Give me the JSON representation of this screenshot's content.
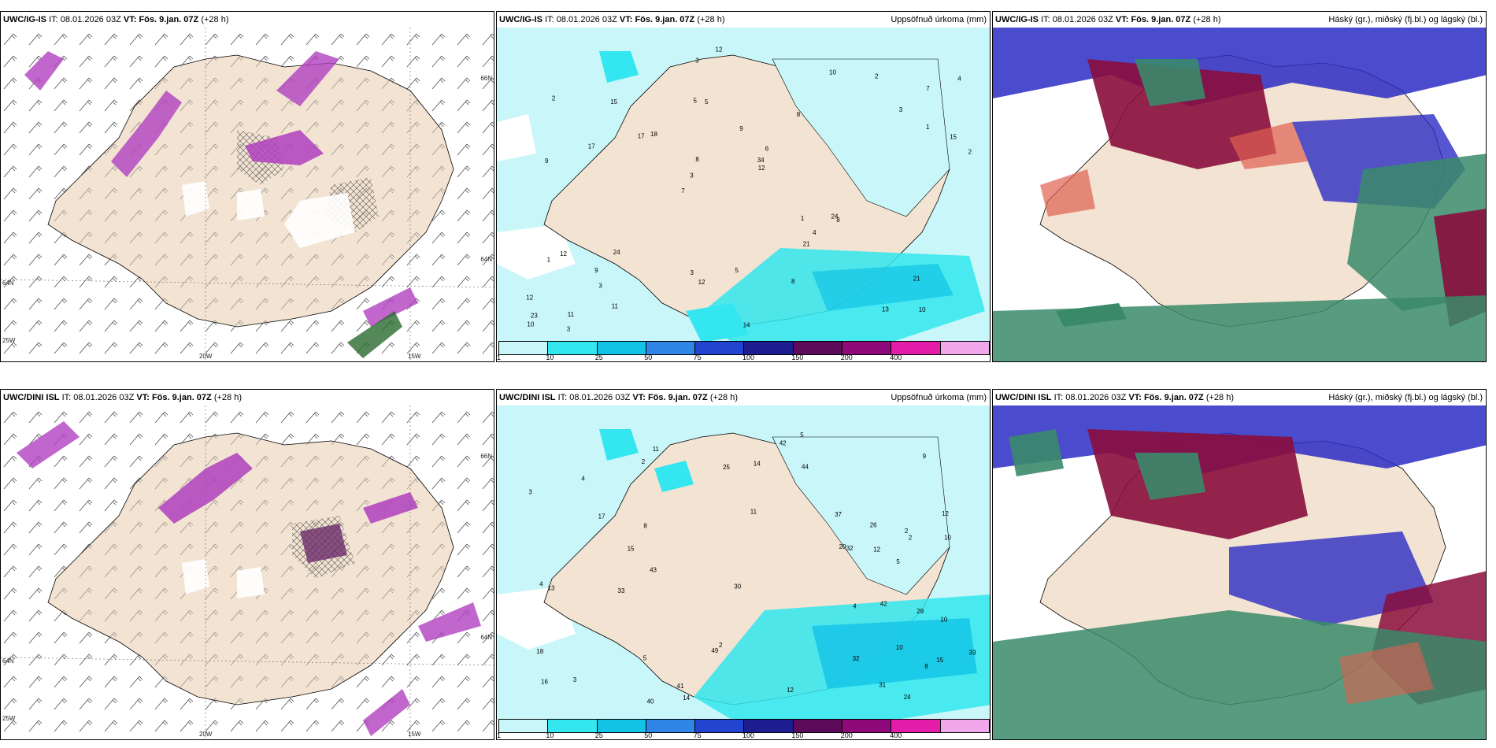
{
  "panels": [
    {
      "id": "p1",
      "model": "UWC/IG-IS",
      "it_label": "IT:",
      "issue": "08.01.2026 03Z",
      "vt_label": "VT:",
      "valid": "Fös. 9.jan. 07Z",
      "lead": "(+28 h)",
      "right_title": "",
      "kind": "wind",
      "axis_labels": [
        "20W",
        "15W",
        "25W",
        "64N",
        "66N",
        "64N"
      ]
    },
    {
      "id": "p2",
      "model": "UWC/IG-IS",
      "it_label": "IT:",
      "issue": "08.01.2026 03Z",
      "vt_label": "VT:",
      "valid": "Fös. 9.jan. 07Z",
      "lead": "(+28 h)",
      "right_title": "Uppsöfnuð úrkoma (mm)",
      "kind": "precip",
      "values": [
        "10",
        "9",
        "7",
        "7",
        "8",
        "11",
        "5",
        "9",
        "12",
        "18",
        "12",
        "3",
        "5",
        "6",
        "8",
        "2",
        "3",
        "2",
        "1",
        "1",
        "3",
        "3",
        "8",
        "15",
        "10",
        "24",
        "13",
        "21",
        "24",
        "14",
        "17",
        "17",
        "21",
        "11",
        "15",
        "34",
        "23",
        "12",
        "12",
        "1",
        "3",
        "4",
        "4",
        "8",
        "9",
        "3",
        "10",
        "5",
        "2",
        "12"
      ]
    },
    {
      "id": "p3",
      "model": "UWC/IG-IS",
      "it_label": "IT:",
      "issue": "08.01.2026 03Z",
      "vt_label": "VT:",
      "valid": "Fös. 9.jan. 07Z",
      "lead": "(+28 h)",
      "right_title": "Háský (gr.), miðský (fj.bl.) og lágský (bl.)",
      "kind": "cloud"
    },
    {
      "id": "p4",
      "model": "UWC/DINI ISL",
      "it_label": "IT:",
      "issue": "08.01.2026 03Z",
      "vt_label": "VT:",
      "valid": "Fös. 9.jan. 07Z",
      "lead": "(+28 h)",
      "right_title": "",
      "kind": "wind",
      "axis_labels": [
        "20W",
        "15W",
        "25W",
        "64N",
        "66N",
        "64N"
      ]
    },
    {
      "id": "p5",
      "model": "UWC/DINI ISL",
      "it_label": "IT:",
      "issue": "08.01.2026 03Z",
      "vt_label": "VT:",
      "valid": "Fös. 9.jan. 07Z",
      "lead": "(+28 h)",
      "right_title": "Uppsöfnuð úrkoma (mm)",
      "kind": "precip",
      "values": [
        "10",
        "12",
        "15",
        "11",
        "16",
        "11",
        "2",
        "5",
        "9",
        "17",
        "10",
        "3",
        "5",
        "14",
        "18",
        "4",
        "8",
        "2",
        "2",
        "2",
        "4",
        "13",
        "12",
        "20",
        "41",
        "49",
        "42",
        "44",
        "37",
        "33",
        "33",
        "32",
        "40",
        "30",
        "29",
        "31",
        "32",
        "25",
        "24",
        "43",
        "42",
        "12",
        "14",
        "15",
        "10",
        "4",
        "3",
        "5",
        "8",
        "26"
      ]
    },
    {
      "id": "p6",
      "model": "UWC/DINI ISL",
      "it_label": "IT:",
      "issue": "08.01.2026 03Z",
      "vt_label": "VT:",
      "valid": "Fös. 9.jan. 07Z",
      "lead": "(+28 h)",
      "right_title": "Háský (gr.), miðský (fj.bl.) og lágský (bl.)",
      "kind": "cloud"
    }
  ],
  "legend": {
    "ticks": [
      "1",
      "10",
      "25",
      "50",
      "75",
      "100",
      "150",
      "200",
      "400"
    ],
    "colors": [
      "#c9f6f8",
      "#33e6ef",
      "#12c3e6",
      "#2f86e6",
      "#2244d1",
      "#1d1d8f",
      "#5e0a5a",
      "#8e0a7a",
      "#e21ea8",
      "#f0a8ea"
    ]
  },
  "colors": {
    "land": "#f2e3d2",
    "precip_light": "#c9f6f8",
    "precip_mid": "#33e6ef",
    "precip_dark": "#12c3e6",
    "cloud_high": "#3a8a6a",
    "cloud_mid": "#8a0d3c",
    "cloud_low": "#2c2cc4"
  }
}
